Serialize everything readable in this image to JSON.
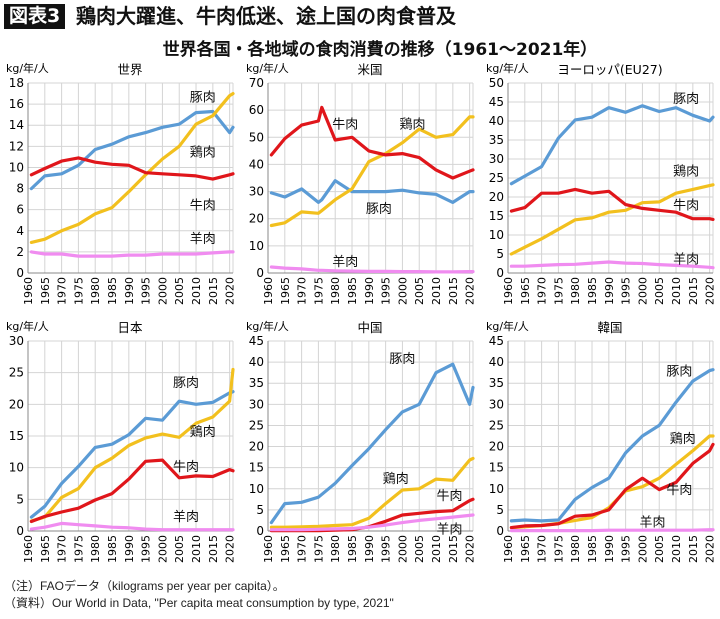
{
  "header": {
    "tag": "図表3",
    "title": "鶏肉大躍進、牛肉低迷、途上国の肉食普及",
    "subtitle": "世界各国・各地域の食肉消費の推移（1961〜2021年）"
  },
  "notes": {
    "note": "（注）FAOデータ（kilograms per year per capita）。",
    "source": "（資料）Our World in Data, \"Per capita meat consumption by type, 2021\""
  },
  "colors": {
    "pork": "#5b9bd5",
    "chicken": "#f2c01e",
    "beef": "#e0161b",
    "mutton": "#f08cf0"
  },
  "chart_data": [
    {
      "type": "line",
      "title": "世界",
      "ylabel": "kg/年/人",
      "xlim": [
        1960,
        2021
      ],
      "ylim": [
        0,
        18
      ],
      "ystep": 2,
      "grid": true,
      "x": [
        1961,
        1965,
        1970,
        1975,
        1980,
        1985,
        1990,
        1995,
        2000,
        2005,
        2010,
        2015,
        2020,
        2021
      ],
      "series": [
        {
          "name": "豚肉",
          "key": "pork",
          "values": [
            8,
            9.2,
            9.4,
            10.2,
            11.7,
            12.2,
            12.9,
            13.3,
            13.8,
            14.1,
            15.2,
            15.3,
            13.3,
            13.8
          ]
        },
        {
          "name": "鶏肉",
          "key": "chicken",
          "values": [
            2.9,
            3.2,
            4.0,
            4.6,
            5.6,
            6.2,
            7.7,
            9.3,
            10.8,
            12.0,
            14.1,
            14.9,
            16.8,
            17.0
          ]
        },
        {
          "name": "牛肉",
          "key": "beef",
          "values": [
            9.3,
            9.9,
            10.6,
            10.9,
            10.5,
            10.3,
            10.2,
            9.5,
            9.4,
            9.3,
            9.2,
            8.9,
            9.3,
            9.4
          ]
        },
        {
          "name": "羊肉",
          "key": "mutton",
          "values": [
            2,
            1.8,
            1.8,
            1.6,
            1.6,
            1.6,
            1.7,
            1.7,
            1.8,
            1.8,
            1.8,
            1.9,
            2.0,
            2.0
          ]
        }
      ]
    },
    {
      "type": "line",
      "title": "米国",
      "ylabel": "kg/年/人",
      "xlim": [
        1960,
        2021
      ],
      "ylim": [
        0,
        70
      ],
      "ystep": 10,
      "grid": true,
      "x": [
        1961,
        1965,
        1970,
        1975,
        1976,
        1980,
        1985,
        1990,
        1995,
        2000,
        2005,
        2010,
        2015,
        2020,
        2021
      ],
      "series": [
        {
          "name": "豚肉",
          "key": "pork",
          "values": [
            29.5,
            28,
            31,
            26,
            27,
            34,
            30,
            30,
            30,
            30.5,
            29.5,
            29,
            26,
            30,
            30
          ]
        },
        {
          "name": "鶏肉",
          "key": "chicken",
          "values": [
            17.5,
            18.5,
            22.5,
            22,
            23,
            27,
            31,
            41,
            44,
            48,
            53,
            50,
            51,
            57.5,
            57.5
          ]
        },
        {
          "name": "牛肉",
          "key": "beef",
          "values": [
            43.5,
            49.5,
            54.5,
            56,
            61,
            49,
            50,
            45,
            43.5,
            44,
            42.5,
            38,
            35,
            37.5,
            38
          ]
        },
        {
          "name": "羊肉",
          "key": "mutton",
          "values": [
            2.2,
            1.8,
            1.5,
            1,
            1,
            0.8,
            0.7,
            0.6,
            0.6,
            0.5,
            0.5,
            0.4,
            0.4,
            0.5,
            0.5
          ]
        }
      ]
    },
    {
      "type": "line",
      "title": "ヨーロッパ(EU27)",
      "ylabel": "kg/年/人",
      "xlim": [
        1960,
        2021
      ],
      "ylim": [
        0,
        50
      ],
      "ystep": 5,
      "grid": true,
      "x": [
        1961,
        1965,
        1970,
        1975,
        1980,
        1985,
        1990,
        1995,
        2000,
        2005,
        2010,
        2015,
        2020,
        2021
      ],
      "series": [
        {
          "name": "豚肉",
          "key": "pork",
          "values": [
            23.5,
            25.5,
            28,
            35.5,
            40.3,
            41,
            43.5,
            42.3,
            44,
            42.5,
            43.5,
            41.5,
            40,
            41
          ]
        },
        {
          "name": "鶏肉",
          "key": "chicken",
          "values": [
            5,
            6.8,
            9,
            11.5,
            14,
            14.5,
            16,
            16.5,
            18.5,
            18.7,
            21,
            22,
            23,
            23.2
          ]
        },
        {
          "name": "牛肉",
          "key": "beef",
          "values": [
            16.3,
            17.2,
            21,
            21,
            22,
            21,
            21.5,
            18,
            17,
            16.5,
            16,
            14.3,
            14.3,
            14.1
          ]
        },
        {
          "name": "羊肉",
          "key": "mutton",
          "values": [
            1.8,
            1.8,
            2,
            2.2,
            2.3,
            2.6,
            2.9,
            2.6,
            2.5,
            2.2,
            2.0,
            1.8,
            1.5,
            1.4
          ]
        }
      ]
    },
    {
      "type": "line",
      "title": "日本",
      "ylabel": "kg/年/人",
      "xlim": [
        1960,
        2021
      ],
      "ylim": [
        0,
        30
      ],
      "ystep": 5,
      "grid": true,
      "x": [
        1961,
        1965,
        1970,
        1975,
        1980,
        1985,
        1990,
        1995,
        2000,
        2005,
        2010,
        2015,
        2020,
        2021
      ],
      "series": [
        {
          "name": "豚肉",
          "key": "pork",
          "values": [
            2.2,
            3.9,
            7.5,
            10.2,
            13.2,
            13.7,
            15.2,
            17.8,
            17.5,
            20.5,
            20,
            20.3,
            21.8,
            22
          ]
        },
        {
          "name": "鶏肉",
          "key": "chicken",
          "values": [
            1.6,
            2.2,
            5.3,
            6.7,
            10,
            11.5,
            13.5,
            14.7,
            15.3,
            14.8,
            17,
            18,
            20.5,
            25.5
          ]
        },
        {
          "name": "牛肉",
          "key": "beef",
          "values": [
            1.5,
            2.3,
            3,
            3.6,
            4.9,
            5.9,
            8.2,
            11,
            11.2,
            8.4,
            8.7,
            8.6,
            9.7,
            9.5
          ]
        },
        {
          "name": "羊肉",
          "key": "mutton",
          "values": [
            0.3,
            0.6,
            1.2,
            1,
            0.8,
            0.6,
            0.5,
            0.3,
            0.2,
            0.2,
            0.2,
            0.2,
            0.2,
            0.2
          ]
        }
      ]
    },
    {
      "type": "line",
      "title": "中国",
      "ylabel": "kg/年/人",
      "xlim": [
        1960,
        2021
      ],
      "ylim": [
        0,
        45
      ],
      "ystep": 5,
      "grid": true,
      "x": [
        1961,
        1965,
        1970,
        1975,
        1980,
        1985,
        1990,
        1995,
        2000,
        2005,
        2010,
        2015,
        2020,
        2021
      ],
      "series": [
        {
          "name": "豚肉",
          "key": "pork",
          "values": [
            2,
            6.5,
            6.8,
            8,
            11.3,
            15.5,
            19.5,
            24,
            28.2,
            30,
            37.5,
            39.5,
            30,
            34
          ]
        },
        {
          "name": "鶏肉",
          "key": "chicken",
          "values": [
            0.9,
            0.9,
            1,
            1.1,
            1.3,
            1.5,
            3,
            6.5,
            9.7,
            10,
            12.3,
            12,
            16.8,
            17.2
          ]
        },
        {
          "name": "牛肉",
          "key": "beef",
          "values": [
            0.1,
            0.1,
            0.1,
            0.1,
            0.2,
            0.3,
            1,
            2.3,
            3.8,
            4.2,
            4.6,
            4.8,
            7.2,
            7.5
          ]
        },
        {
          "name": "羊肉",
          "key": "mutton",
          "values": [
            0.3,
            0.3,
            0.3,
            0.4,
            0.5,
            0.6,
            0.9,
            1.4,
            2,
            2.5,
            2.9,
            3.3,
            3.7,
            3.8
          ]
        }
      ]
    },
    {
      "type": "line",
      "title": "韓国",
      "ylabel": "kg/年/人",
      "xlim": [
        1960,
        2021
      ],
      "ylim": [
        0,
        45
      ],
      "ystep": 5,
      "grid": true,
      "x": [
        1961,
        1965,
        1970,
        1975,
        1980,
        1985,
        1990,
        1995,
        2000,
        2005,
        2010,
        2015,
        2020,
        2021
      ],
      "series": [
        {
          "name": "豚肉",
          "key": "pork",
          "values": [
            2.4,
            2.6,
            2.4,
            2.6,
            7.5,
            10.3,
            12.5,
            18.5,
            22.5,
            25,
            30.5,
            35.5,
            38,
            38.2
          ]
        },
        {
          "name": "鶏肉",
          "key": "chicken",
          "values": [
            0.8,
            1,
            1.3,
            1.8,
            2.5,
            3.2,
            5.5,
            9.5,
            10.5,
            12.5,
            15.8,
            19,
            22.5,
            22.5
          ]
        },
        {
          "name": "牛肉",
          "key": "beef",
          "values": [
            0.8,
            1.2,
            1.3,
            1.7,
            3.5,
            3.8,
            5,
            9.8,
            12.5,
            9.8,
            11.5,
            16,
            19,
            20.5
          ]
        },
        {
          "name": "羊肉",
          "key": "mutton",
          "values": [
            0.1,
            0.1,
            0.1,
            0.1,
            0.1,
            0.1,
            0.2,
            0.2,
            0.2,
            0.2,
            0.2,
            0.2,
            0.3,
            0.3
          ]
        }
      ]
    }
  ]
}
